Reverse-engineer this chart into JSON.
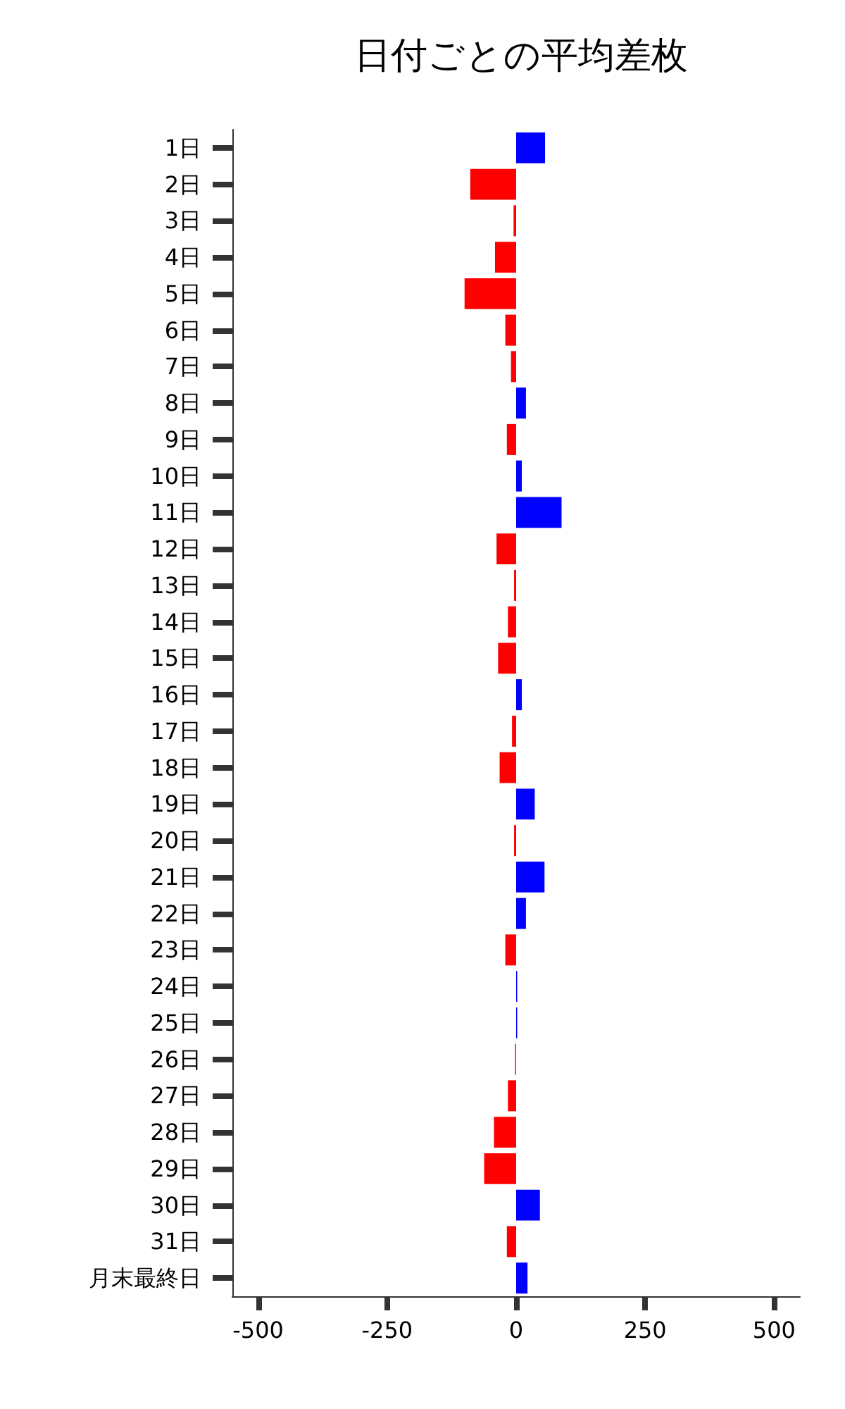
{
  "chart_data": {
    "type": "bar",
    "orientation": "horizontal",
    "title": "日付ごとの平均差枚",
    "categories": [
      "1日",
      "2日",
      "3日",
      "4日",
      "5日",
      "6日",
      "7日",
      "8日",
      "9日",
      "10日",
      "11日",
      "12日",
      "13日",
      "14日",
      "15日",
      "16日",
      "17日",
      "18日",
      "19日",
      "20日",
      "21日",
      "22日",
      "23日",
      "24日",
      "25日",
      "26日",
      "27日",
      "28日",
      "29日",
      "30日",
      "31日",
      "月末最終日"
    ],
    "values": [
      56,
      -89,
      -5,
      -41,
      -100,
      -21,
      -10,
      19,
      -18,
      11,
      88,
      -38,
      -4,
      -16,
      -35,
      11,
      -8,
      -32,
      36,
      -4,
      55,
      19,
      -21,
      2,
      2,
      -2,
      -16,
      -43,
      -62,
      46,
      -18,
      22
    ],
    "colors": [
      "#0000ff",
      "#ff0000",
      "#ff0000",
      "#ff0000",
      "#ff0000",
      "#ff0000",
      "#ff0000",
      "#0000ff",
      "#ff0000",
      "#0000ff",
      "#0000ff",
      "#ff0000",
      "#ff0000",
      "#ff0000",
      "#ff0000",
      "#0000ff",
      "#ff0000",
      "#ff0000",
      "#0000ff",
      "#ff0000",
      "#0000ff",
      "#0000ff",
      "#ff0000",
      "#0000ff",
      "#0000ff",
      "#ff0000",
      "#ff0000",
      "#ff0000",
      "#ff0000",
      "#0000ff",
      "#ff0000",
      "#0000ff"
    ],
    "xlim": [
      -550,
      550
    ],
    "xticks": [
      -500,
      -250,
      0,
      250,
      500
    ]
  }
}
